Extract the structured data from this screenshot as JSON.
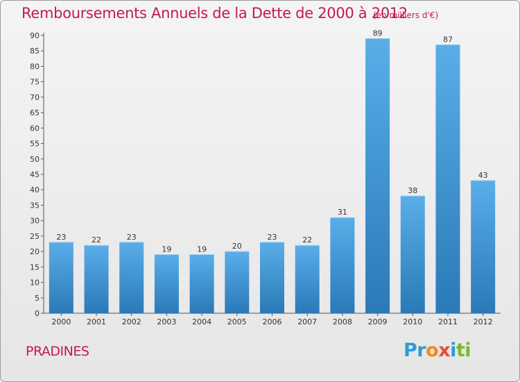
{
  "header": {
    "title": "Remboursements Annuels de la Dette de 2000 à 2012",
    "subtitle": "(en milliers d'€)"
  },
  "footer": {
    "commune": "PRADINES",
    "logo_letters": [
      {
        "char": "P",
        "color": "#2f9bd6"
      },
      {
        "char": "r",
        "color": "#2f9bd6"
      },
      {
        "char": "o",
        "color": "#f28c1a"
      },
      {
        "char": "x",
        "color": "#e64a3b"
      },
      {
        "char": "i",
        "color": "#2f9bd6"
      },
      {
        "char": "t",
        "color": "#7cb82f"
      },
      {
        "char": "i",
        "color": "#7cb82f"
      }
    ]
  },
  "colors": {
    "title": "#c2185b",
    "bar_top": "#5aaee8",
    "bar_bottom": "#2a79b8"
  },
  "chart_data": {
    "type": "bar",
    "title": "Remboursements Annuels de la Dette de 2000 à 2012",
    "subtitle": "(en milliers d'€)",
    "categories": [
      "2000",
      "2001",
      "2002",
      "2003",
      "2004",
      "2005",
      "2006",
      "2007",
      "2008",
      "2009",
      "2010",
      "2011",
      "2012"
    ],
    "values": [
      23,
      22,
      23,
      19,
      19,
      20,
      23,
      22,
      31,
      89,
      38,
      87,
      43
    ],
    "ylim": [
      0,
      90
    ],
    "yticks": [
      0,
      5,
      10,
      15,
      20,
      25,
      30,
      35,
      40,
      45,
      50,
      55,
      60,
      65,
      70,
      75,
      80,
      85,
      90
    ],
    "grid": false,
    "data_labels": true
  }
}
